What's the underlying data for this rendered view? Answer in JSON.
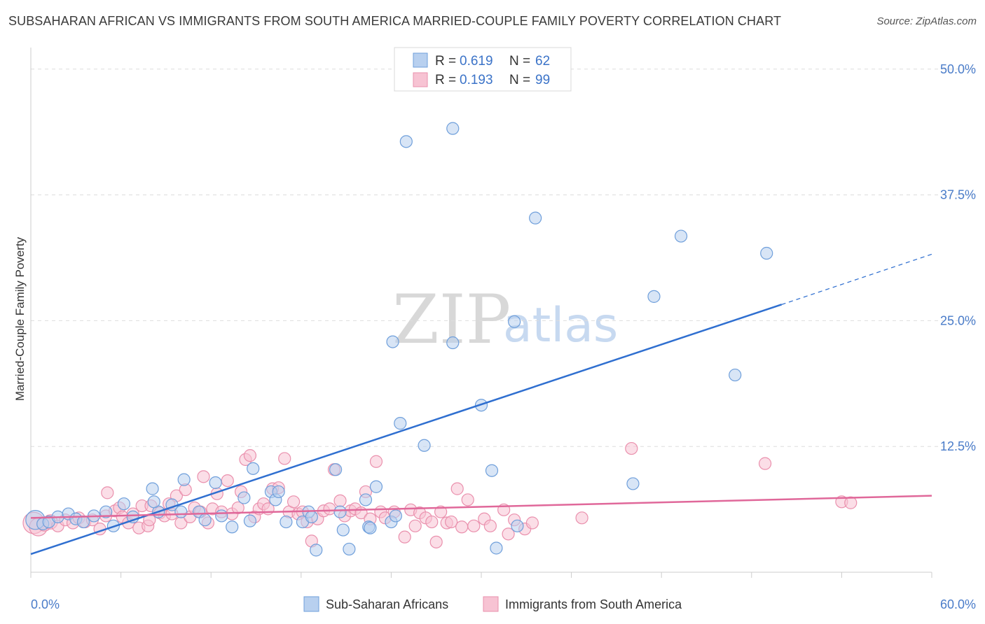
{
  "title": "SUBSAHARAN AFRICAN VS IMMIGRANTS FROM SOUTH AMERICA MARRIED-COUPLE FAMILY POVERTY CORRELATION CHART",
  "source": "Source: ZipAtlas.com",
  "watermark": {
    "zip": "ZIP",
    "atlas": "atlas"
  },
  "colors": {
    "blue_fill": "#b8d0ef",
    "blue_stroke": "#6f9fdb",
    "blue_line": "#2f6fd0",
    "pink_fill": "#f7c3d3",
    "pink_stroke": "#ea90ad",
    "pink_line": "#e0689a",
    "grid": "#dddddd",
    "axis_text": "#4a7cc9"
  },
  "legend": {
    "blue": {
      "r_label": "R = ",
      "r_value": "0.619",
      "n_label": "N = ",
      "n_value": "62"
    },
    "pink": {
      "r_label": "R = ",
      "r_value": "0.193",
      "n_label": "N = ",
      "n_value": "99"
    }
  },
  "chart_data": {
    "type": "scatter",
    "title": "SUBSAHARAN AFRICAN VS IMMIGRANTS FROM SOUTH AMERICA MARRIED-COUPLE FAMILY POVERTY CORRELATION CHART",
    "xlabel": "",
    "ylabel": "Married-Couple Family Poverty",
    "x_tick_labels": [
      "0.0%",
      "60.0%"
    ],
    "y_tick_labels": [
      "12.5%",
      "25.0%",
      "37.5%",
      "50.0%"
    ],
    "y_ticks": [
      12.5,
      25.0,
      37.5,
      50.0
    ],
    "xlim": [
      0,
      60
    ],
    "ylim": [
      0,
      52
    ],
    "series": [
      {
        "name": "Sub-Saharan Africans",
        "color": "blue",
        "R": 0.619,
        "N": 62,
        "trend": {
          "x0": 0,
          "y0": 1.8,
          "x1": 50,
          "y1": 26.6,
          "x_dash_end": 60,
          "y_dash_end": 31.6
        },
        "points": [
          [
            0.3,
            5.2,
            1.6
          ],
          [
            0.8,
            4.8,
            1.0
          ],
          [
            1.2,
            5.0,
            1.0
          ],
          [
            1.8,
            5.5,
            1.0
          ],
          [
            2.5,
            5.8,
            1.0
          ],
          [
            3.0,
            5.3,
            1.0
          ],
          [
            3.5,
            5.0,
            1.0
          ],
          [
            4.2,
            5.6,
            1.0
          ],
          [
            5.0,
            6.0,
            1.0
          ],
          [
            5.5,
            4.6,
            1.0
          ],
          [
            6.2,
            6.8,
            1.0
          ],
          [
            6.8,
            5.5,
            1.0
          ],
          [
            8.1,
            8.3,
            1.0
          ],
          [
            8.5,
            6.0,
            1.0
          ],
          [
            8.2,
            7.0,
            1.0
          ],
          [
            9.4,
            6.7,
            1.0
          ],
          [
            10.0,
            6.0,
            1.0
          ],
          [
            10.2,
            9.2,
            1.0
          ],
          [
            11.2,
            6.0,
            1.0
          ],
          [
            11.6,
            5.2,
            1.0
          ],
          [
            12.3,
            8.9,
            1.0
          ],
          [
            12.7,
            5.6,
            1.0
          ],
          [
            13.4,
            4.5,
            1.0
          ],
          [
            14.2,
            7.4,
            1.0
          ],
          [
            14.6,
            5.1,
            1.0
          ],
          [
            14.8,
            10.3,
            1.0
          ],
          [
            16.0,
            8.0,
            1.0
          ],
          [
            16.3,
            7.2,
            1.0
          ],
          [
            16.5,
            8.0,
            1.0
          ],
          [
            17.0,
            5.0,
            1.0
          ],
          [
            18.1,
            5.0,
            1.0
          ],
          [
            18.5,
            6.0,
            1.0
          ],
          [
            18.7,
            5.5,
            1.0
          ],
          [
            19.0,
            2.2,
            1.0
          ],
          [
            20.3,
            10.2,
            1.0
          ],
          [
            20.6,
            6.0,
            1.0
          ],
          [
            20.8,
            4.2,
            1.0
          ],
          [
            21.2,
            2.3,
            1.0
          ],
          [
            22.3,
            7.2,
            1.0
          ],
          [
            22.5,
            4.5,
            1.0
          ],
          [
            22.6,
            4.4,
            1.0
          ],
          [
            23.0,
            8.5,
            1.0
          ],
          [
            24.0,
            5.0,
            1.0
          ],
          [
            24.3,
            5.6,
            1.0
          ],
          [
            24.1,
            22.9,
            1.0
          ],
          [
            24.6,
            14.8,
            1.0
          ],
          [
            25.0,
            42.8,
            1.0
          ],
          [
            26.2,
            12.6,
            1.0
          ],
          [
            28.1,
            44.1,
            1.0
          ],
          [
            28.1,
            22.8,
            1.0
          ],
          [
            30.0,
            16.6,
            1.0
          ],
          [
            30.7,
            10.1,
            1.0
          ],
          [
            31.0,
            2.4,
            1.0
          ],
          [
            32.4,
            4.6,
            1.0
          ],
          [
            32.2,
            24.9,
            1.0
          ],
          [
            33.6,
            35.2,
            1.0
          ],
          [
            40.1,
            8.8,
            1.0
          ],
          [
            41.5,
            27.4,
            1.0
          ],
          [
            43.3,
            33.4,
            1.0
          ],
          [
            46.9,
            19.6,
            1.0
          ],
          [
            49.0,
            31.7,
            1.0
          ]
        ]
      },
      {
        "name": "Immigrants from South America",
        "color": "pink",
        "R": 0.193,
        "N": 99,
        "trend": {
          "x0": 0,
          "y0": 5.4,
          "x1": 60,
          "y1": 7.6
        },
        "points": [
          [
            0.2,
            4.9,
            1.8
          ],
          [
            0.5,
            4.5,
            1.5
          ],
          [
            0.9,
            4.8,
            1.2
          ],
          [
            1.3,
            5.0,
            1.2
          ],
          [
            1.8,
            4.6,
            1.0
          ],
          [
            2.3,
            5.2,
            1.0
          ],
          [
            2.8,
            4.9,
            1.0
          ],
          [
            3.2,
            5.4,
            1.0
          ],
          [
            3.6,
            5.0,
            1.0
          ],
          [
            4.1,
            5.2,
            1.0
          ],
          [
            4.6,
            4.3,
            1.0
          ],
          [
            5.0,
            5.6,
            1.0
          ],
          [
            5.1,
            7.9,
            1.0
          ],
          [
            5.6,
            6.1,
            1.0
          ],
          [
            5.9,
            6.4,
            1.0
          ],
          [
            6.1,
            5.5,
            1.0
          ],
          [
            6.5,
            4.9,
            1.0
          ],
          [
            6.8,
            5.8,
            1.0
          ],
          [
            7.2,
            4.4,
            1.0
          ],
          [
            7.4,
            6.6,
            1.0
          ],
          [
            7.8,
            4.6,
            1.0
          ],
          [
            7.9,
            5.2,
            1.0
          ],
          [
            8.0,
            6.6,
            1.0
          ],
          [
            8.6,
            5.9,
            1.0
          ],
          [
            8.9,
            5.6,
            1.0
          ],
          [
            9.2,
            6.8,
            1.0
          ],
          [
            9.4,
            5.8,
            1.0
          ],
          [
            9.7,
            7.6,
            1.0
          ],
          [
            10.0,
            4.9,
            1.0
          ],
          [
            10.3,
            8.2,
            1.0
          ],
          [
            10.6,
            5.5,
            1.0
          ],
          [
            10.9,
            6.4,
            1.0
          ],
          [
            11.3,
            6.0,
            1.0
          ],
          [
            11.5,
            9.5,
            1.0
          ],
          [
            11.8,
            4.9,
            1.0
          ],
          [
            12.1,
            6.3,
            1.0
          ],
          [
            12.4,
            7.8,
            1.0
          ],
          [
            12.7,
            6.0,
            1.0
          ],
          [
            13.1,
            9.1,
            1.0
          ],
          [
            13.4,
            5.8,
            1.0
          ],
          [
            13.8,
            6.4,
            1.0
          ],
          [
            14.0,
            8.0,
            1.0
          ],
          [
            14.3,
            11.2,
            1.0
          ],
          [
            14.6,
            11.6,
            1.0
          ],
          [
            14.9,
            5.5,
            1.0
          ],
          [
            15.2,
            6.3,
            1.0
          ],
          [
            15.5,
            6.8,
            1.0
          ],
          [
            15.8,
            6.3,
            1.0
          ],
          [
            16.1,
            8.3,
            1.0
          ],
          [
            16.5,
            8.4,
            1.0
          ],
          [
            16.9,
            11.3,
            1.0
          ],
          [
            17.2,
            6.0,
            1.0
          ],
          [
            17.5,
            7.0,
            1.0
          ],
          [
            17.8,
            5.8,
            1.0
          ],
          [
            18.1,
            6.0,
            1.0
          ],
          [
            18.4,
            5.0,
            1.0
          ],
          [
            18.7,
            3.1,
            1.0
          ],
          [
            19.1,
            5.3,
            1.0
          ],
          [
            19.5,
            6.1,
            1.0
          ],
          [
            19.9,
            6.3,
            1.0
          ],
          [
            20.2,
            10.2,
            1.0
          ],
          [
            20.6,
            7.1,
            1.0
          ],
          [
            20.9,
            5.6,
            1.0
          ],
          [
            21.3,
            6.1,
            1.0
          ],
          [
            21.6,
            6.3,
            1.0
          ],
          [
            22.0,
            5.9,
            1.0
          ],
          [
            22.3,
            8.0,
            1.0
          ],
          [
            22.6,
            5.3,
            1.0
          ],
          [
            23.0,
            11.0,
            1.0
          ],
          [
            23.3,
            6.0,
            1.0
          ],
          [
            23.6,
            5.4,
            1.0
          ],
          [
            24.2,
            6.0,
            1.0
          ],
          [
            24.9,
            3.5,
            1.0
          ],
          [
            25.3,
            6.2,
            1.0
          ],
          [
            25.6,
            4.6,
            1.0
          ],
          [
            25.9,
            5.9,
            1.0
          ],
          [
            26.3,
            5.4,
            1.0
          ],
          [
            26.7,
            5.0,
            1.0
          ],
          [
            27.0,
            3.0,
            1.0
          ],
          [
            27.3,
            6.0,
            1.0
          ],
          [
            27.7,
            4.9,
            1.0
          ],
          [
            28.0,
            5.0,
            1.0
          ],
          [
            28.4,
            8.3,
            1.0
          ],
          [
            28.7,
            4.5,
            1.0
          ],
          [
            29.1,
            7.2,
            1.0
          ],
          [
            29.5,
            4.6,
            1.0
          ],
          [
            30.2,
            5.3,
            1.0
          ],
          [
            30.6,
            4.6,
            1.0
          ],
          [
            31.5,
            6.2,
            1.0
          ],
          [
            31.8,
            3.8,
            1.0
          ],
          [
            32.2,
            5.2,
            1.0
          ],
          [
            32.9,
            4.3,
            1.0
          ],
          [
            33.4,
            4.9,
            1.0
          ],
          [
            36.7,
            5.4,
            1.0
          ],
          [
            40.0,
            12.3,
            1.0
          ],
          [
            48.9,
            10.8,
            1.0
          ],
          [
            54.0,
            7.0,
            1.0
          ],
          [
            54.6,
            6.9,
            1.0
          ]
        ]
      }
    ]
  }
}
